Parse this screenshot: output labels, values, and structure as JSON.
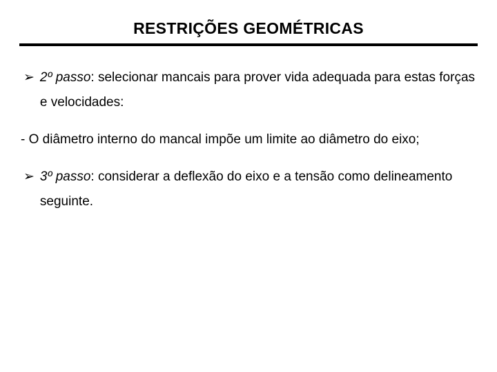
{
  "title": "RESTRIÇÕES GEOMÉTRICAS",
  "step2": {
    "bullet": "➢",
    "label": "2º passo",
    "sep": ": ",
    "text": "selecionar mancais para prover vida adequada para estas forças e velocidades:"
  },
  "plain": "- O diâmetro interno do mancal impõe um limite ao diâmetro do eixo;",
  "step3": {
    "bullet": "➢",
    "label": "3º passo",
    "sep": ": ",
    "text": "considerar a deflexão do eixo e a tensão como delineamento seguinte."
  }
}
